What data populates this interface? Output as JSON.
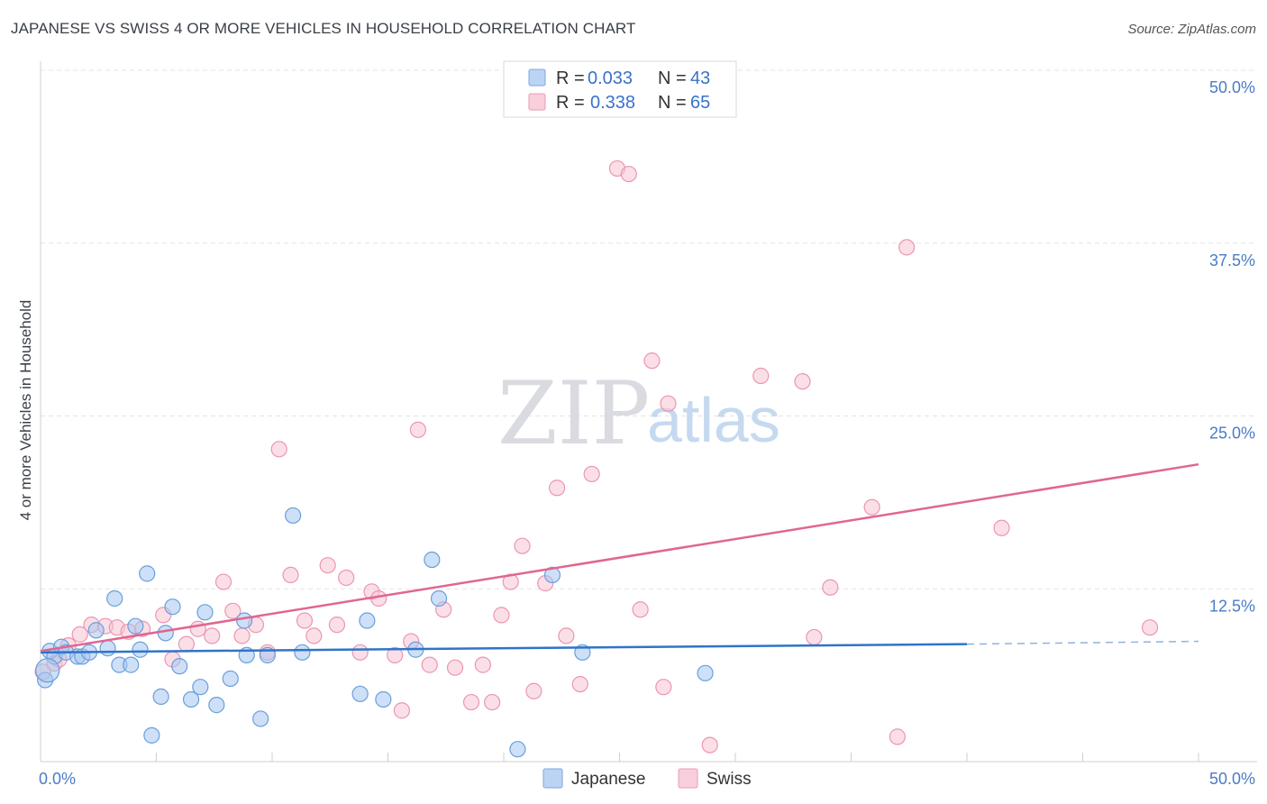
{
  "title": "JAPANESE VS SWISS 4 OR MORE VEHICLES IN HOUSEHOLD CORRELATION CHART",
  "source": "Source: ZipAtlas.com",
  "watermark": {
    "zip": "ZIP",
    "atlas": "atlas"
  },
  "colors": {
    "japanese": "#6a9fdb",
    "swiss": "#f0a0b8",
    "japanese_line": "#2f74c9",
    "swiss_line": "#e06690",
    "tick_text": "#4a7bc8"
  },
  "legend": {
    "japanese": {
      "r_label": "R =",
      "r_value": "0.033",
      "n_label": "N =",
      "n_value": "43"
    },
    "swiss": {
      "r_label": "R =",
      "r_value": "0.338",
      "n_label": "N =",
      "n_value": "65"
    }
  },
  "bottom_legend": {
    "japanese": "Japanese",
    "swiss": "Swiss"
  },
  "chart_data": {
    "type": "scatter",
    "title": "JAPANESE VS SWISS 4 OR MORE VEHICLES IN HOUSEHOLD CORRELATION CHART",
    "xlabel": "",
    "ylabel": "4 or more Vehicles in Household",
    "xlim": [
      0,
      50
    ],
    "ylim": [
      0,
      50
    ],
    "x_tick_labels": [
      "0.0%",
      "50.0%"
    ],
    "y_ticks": [
      12.5,
      25.0,
      37.5,
      50.0
    ],
    "y_tick_labels": [
      "12.5%",
      "25.0%",
      "37.5%",
      "50.0%"
    ],
    "grid": true,
    "series": [
      {
        "name": "Japanese",
        "r": 0.033,
        "n": 43,
        "trend": {
          "x": [
            0,
            40
          ],
          "y": [
            7.9,
            8.5
          ],
          "dashed_to": [
            50,
            8.7
          ]
        },
        "points": [
          [
            0.2,
            5.9
          ],
          [
            0.4,
            8.0
          ],
          [
            0.6,
            7.6
          ],
          [
            0.9,
            8.3
          ],
          [
            1.1,
            7.9
          ],
          [
            1.6,
            7.6
          ],
          [
            1.8,
            7.6
          ],
          [
            2.1,
            7.9
          ],
          [
            2.4,
            9.5
          ],
          [
            2.9,
            8.2
          ],
          [
            3.2,
            11.8
          ],
          [
            3.4,
            7.0
          ],
          [
            3.9,
            7.0
          ],
          [
            4.1,
            9.8
          ],
          [
            4.3,
            8.1
          ],
          [
            4.6,
            13.6
          ],
          [
            4.8,
            1.9
          ],
          [
            5.2,
            4.7
          ],
          [
            5.4,
            9.3
          ],
          [
            5.7,
            11.2
          ],
          [
            6.0,
            6.9
          ],
          [
            6.5,
            4.5
          ],
          [
            6.9,
            5.4
          ],
          [
            7.1,
            10.8
          ],
          [
            7.6,
            4.1
          ],
          [
            8.2,
            6.0
          ],
          [
            8.8,
            10.2
          ],
          [
            8.9,
            7.7
          ],
          [
            9.5,
            3.1
          ],
          [
            9.8,
            7.7
          ],
          [
            10.9,
            17.8
          ],
          [
            11.3,
            7.9
          ],
          [
            13.8,
            4.9
          ],
          [
            14.1,
            10.2
          ],
          [
            14.8,
            4.5
          ],
          [
            16.2,
            8.1
          ],
          [
            16.9,
            14.6
          ],
          [
            17.2,
            11.8
          ],
          [
            20.6,
            0.9
          ],
          [
            22.1,
            13.5
          ],
          [
            23.4,
            7.9
          ],
          [
            28.7,
            6.4
          ],
          [
            0.3,
            6.6
          ]
        ]
      },
      {
        "name": "Swiss",
        "r": 0.338,
        "n": 65,
        "trend": {
          "x": [
            0,
            50
          ],
          "y": [
            8.0,
            21.5
          ]
        },
        "points": [
          [
            0.1,
            6.5
          ],
          [
            0.6,
            7.1
          ],
          [
            0.8,
            7.4
          ],
          [
            1.2,
            8.4
          ],
          [
            1.7,
            9.2
          ],
          [
            2.2,
            9.9
          ],
          [
            2.8,
            9.8
          ],
          [
            3.3,
            9.7
          ],
          [
            3.8,
            9.4
          ],
          [
            4.4,
            9.6
          ],
          [
            5.3,
            10.6
          ],
          [
            5.7,
            7.4
          ],
          [
            6.3,
            8.5
          ],
          [
            6.8,
            9.6
          ],
          [
            7.4,
            9.1
          ],
          [
            7.9,
            13.0
          ],
          [
            8.3,
            10.9
          ],
          [
            8.7,
            9.1
          ],
          [
            9.3,
            9.9
          ],
          [
            9.8,
            7.9
          ],
          [
            10.3,
            22.6
          ],
          [
            10.8,
            13.5
          ],
          [
            11.4,
            10.2
          ],
          [
            11.8,
            9.1
          ],
          [
            12.4,
            14.2
          ],
          [
            12.8,
            9.9
          ],
          [
            13.2,
            13.3
          ],
          [
            13.8,
            7.9
          ],
          [
            14.3,
            12.3
          ],
          [
            14.6,
            11.8
          ],
          [
            15.3,
            7.7
          ],
          [
            15.6,
            3.7
          ],
          [
            16.0,
            8.7
          ],
          [
            16.3,
            24.0
          ],
          [
            16.8,
            7.0
          ],
          [
            17.4,
            11.0
          ],
          [
            17.9,
            6.8
          ],
          [
            18.6,
            4.3
          ],
          [
            19.1,
            7.0
          ],
          [
            19.5,
            4.3
          ],
          [
            19.9,
            10.6
          ],
          [
            20.3,
            13.0
          ],
          [
            20.8,
            15.6
          ],
          [
            21.3,
            5.1
          ],
          [
            21.8,
            12.9
          ],
          [
            22.3,
            19.8
          ],
          [
            22.7,
            9.1
          ],
          [
            23.3,
            5.6
          ],
          [
            23.8,
            20.8
          ],
          [
            24.9,
            42.9
          ],
          [
            25.4,
            42.5
          ],
          [
            25.9,
            11.0
          ],
          [
            26.4,
            29.0
          ],
          [
            26.9,
            5.4
          ],
          [
            27.1,
            25.9
          ],
          [
            28.9,
            1.2
          ],
          [
            31.1,
            27.9
          ],
          [
            32.9,
            27.5
          ],
          [
            33.4,
            9.0
          ],
          [
            34.1,
            12.6
          ],
          [
            35.9,
            18.4
          ],
          [
            37.0,
            1.8
          ],
          [
            37.4,
            37.2
          ],
          [
            41.5,
            16.9
          ],
          [
            47.9,
            9.7
          ]
        ]
      }
    ]
  }
}
